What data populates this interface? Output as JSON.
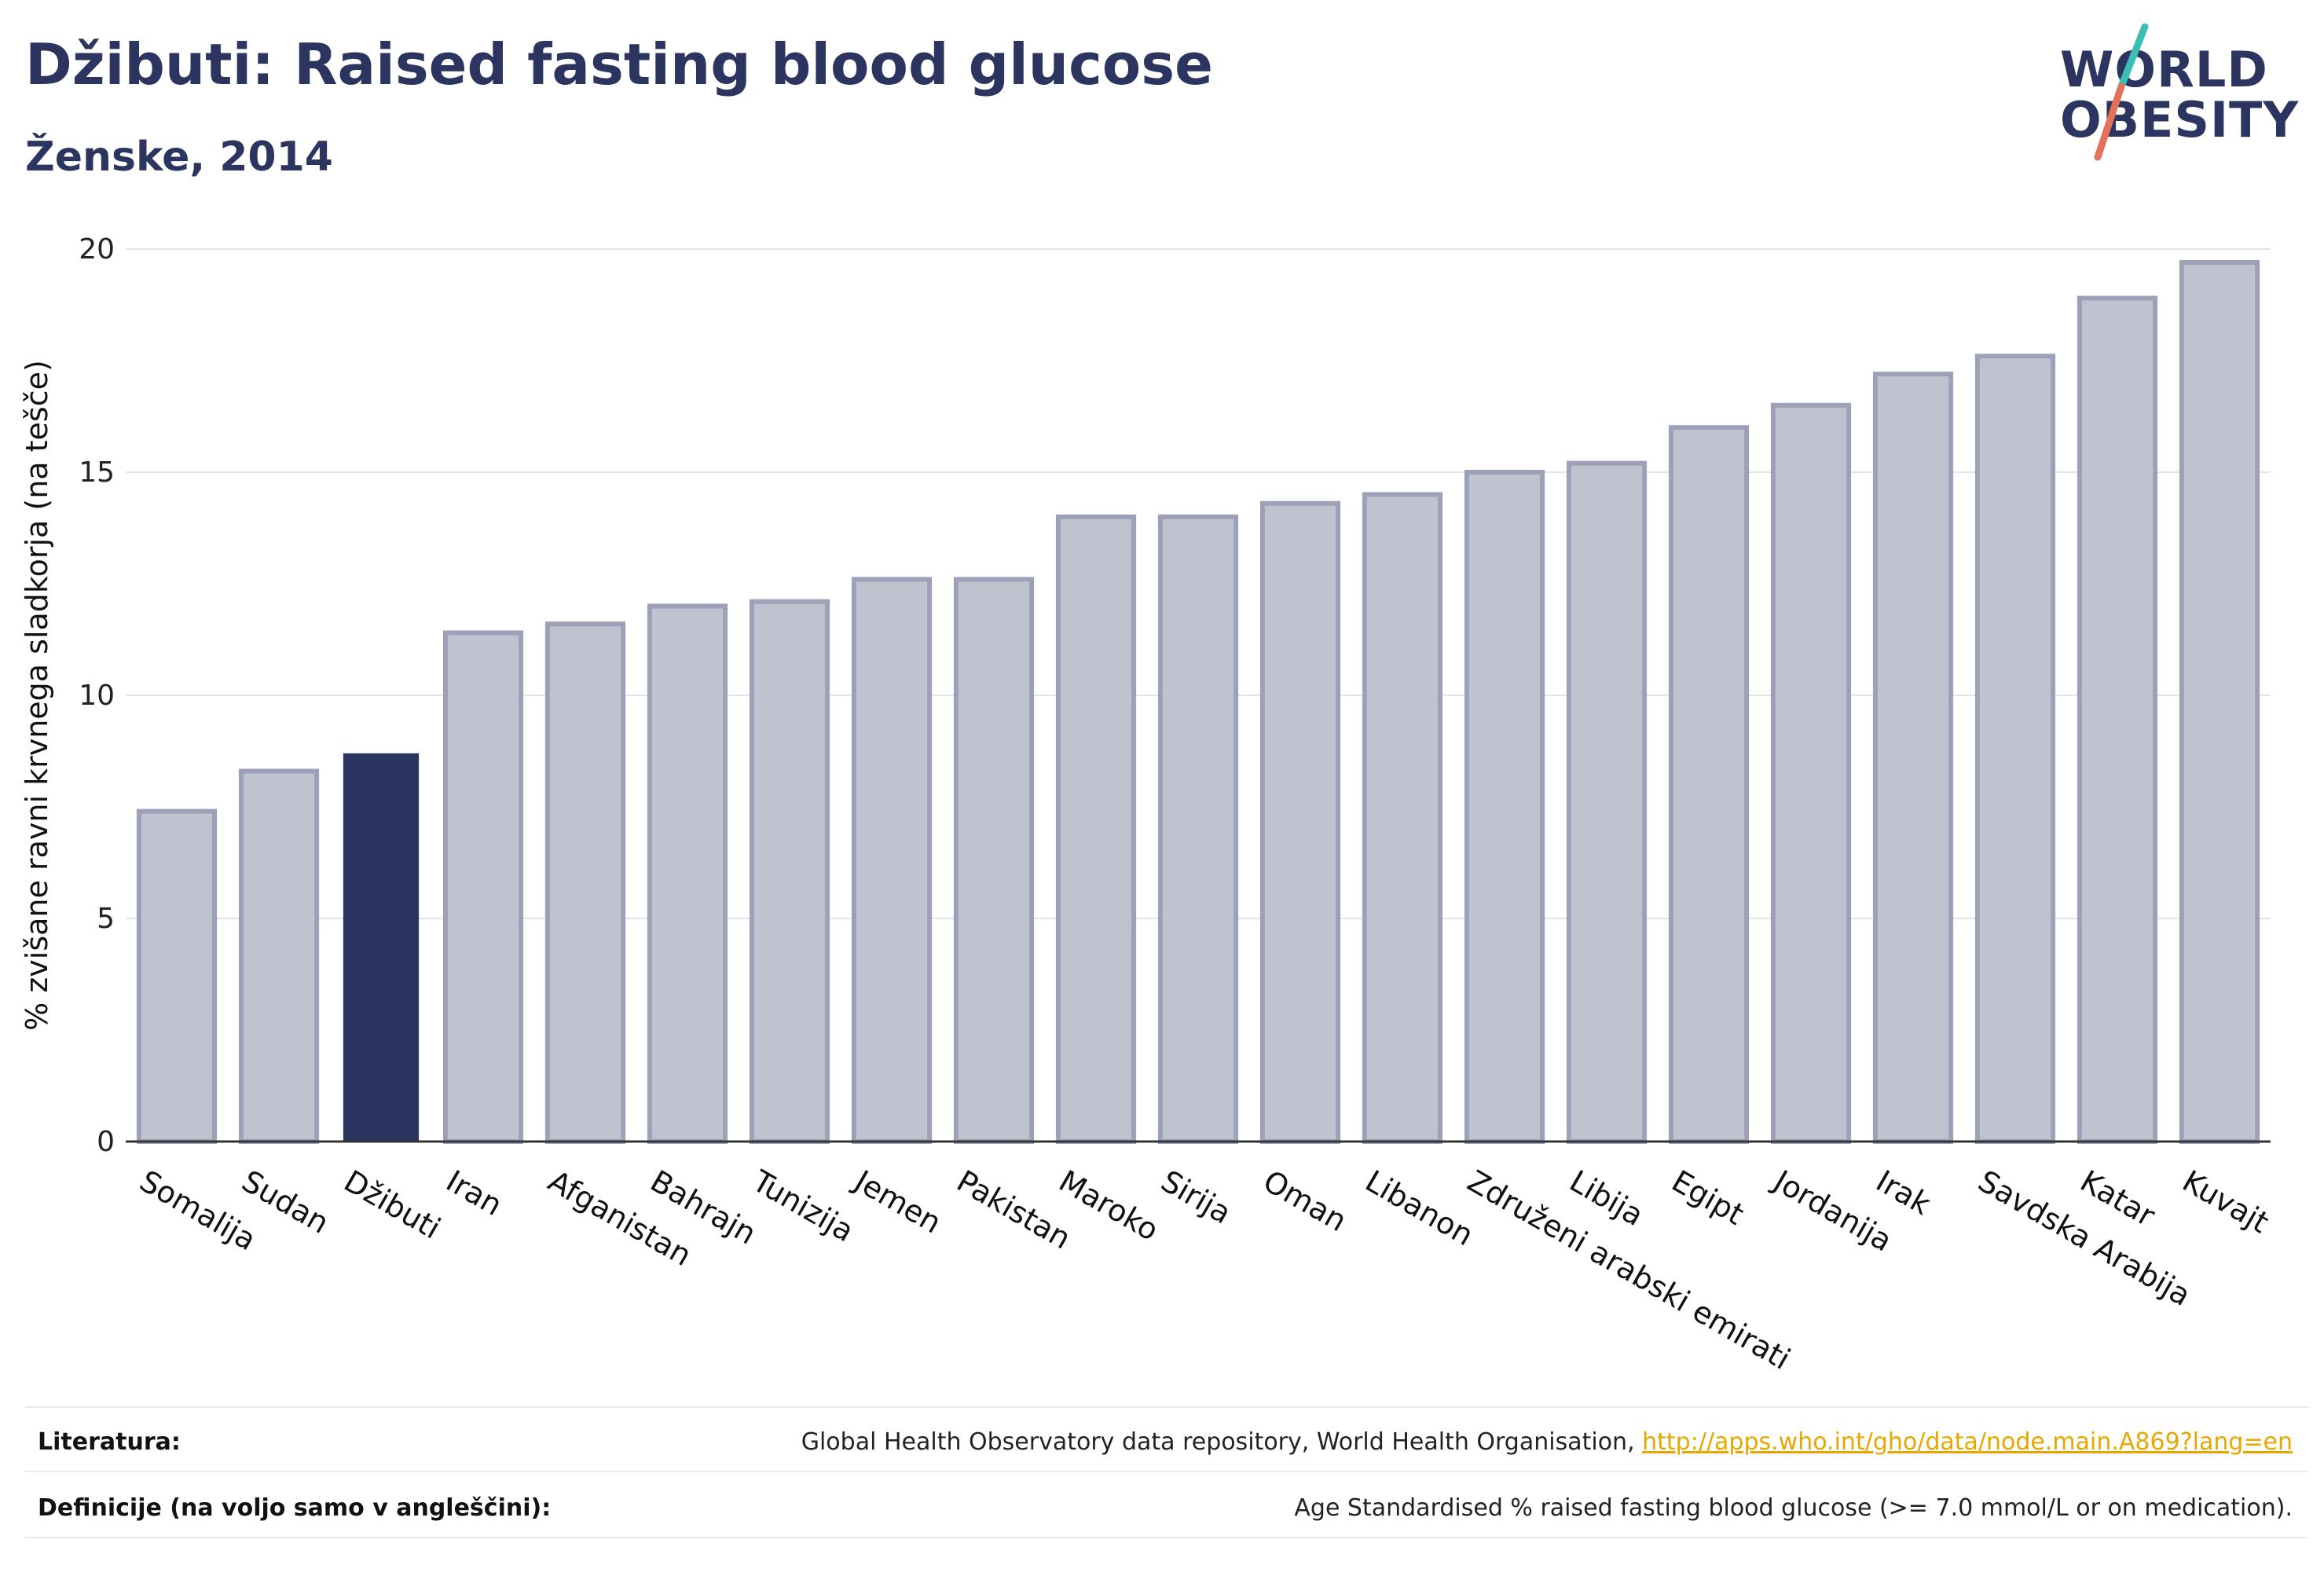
{
  "header": {
    "title": "Džibuti: Raised fasting blood glucose",
    "subtitle": "Ženske, 2014"
  },
  "logo": {
    "line1": "WORLD",
    "line2": "OBESITY"
  },
  "colors": {
    "highlight": "#2b3560",
    "bar": "#bfc2cf",
    "bar_border": "#9ca1b8",
    "grid": "#e3e4ea",
    "logo_slash_teal": "#3bbfb5",
    "logo_slash_red": "#e2725b",
    "link": "#e6a800"
  },
  "chart_data": {
    "type": "bar",
    "title": "Džibuti: Raised fasting blood glucose",
    "subtitle": "Ženske, 2014",
    "xlabel": "",
    "ylabel": "% zvišane ravni krvnega sladkorja (na tešče)",
    "ylim": [
      0,
      20
    ],
    "yticks": [
      0,
      5,
      10,
      15,
      20
    ],
    "grid": true,
    "highlight_category": "Džibuti",
    "categories": [
      "Somalija",
      "Sudan",
      "Džibuti",
      "Iran",
      "Afganistan",
      "Bahrajn",
      "Tunizija",
      "Jemen",
      "Pakistan",
      "Maroko",
      "Sirija",
      "Oman",
      "Libanon",
      "Združeni arabski emirati",
      "Libija",
      "Egipt",
      "Jordanija",
      "Irak",
      "Savdska Arabija",
      "Katar",
      "Kuvajt"
    ],
    "values": [
      7.4,
      8.3,
      8.7,
      11.4,
      11.6,
      12.0,
      12.1,
      12.6,
      12.6,
      14.0,
      14.0,
      14.3,
      14.5,
      15.0,
      15.2,
      16.0,
      16.5,
      17.2,
      17.6,
      18.9,
      19.7
    ]
  },
  "footer": {
    "references_label": "Literatura:",
    "references_text": "Global Health Observatory data repository, World Health Organisation, ",
    "references_link": "http://apps.who.int/gho/data/node.main.A869?lang=en",
    "definitions_label": "Definicije (na voljo samo v angleščini):",
    "definitions_text": "Age Standardised % raised fasting blood glucose (>= 7.0 mmol/L or on medication)."
  }
}
